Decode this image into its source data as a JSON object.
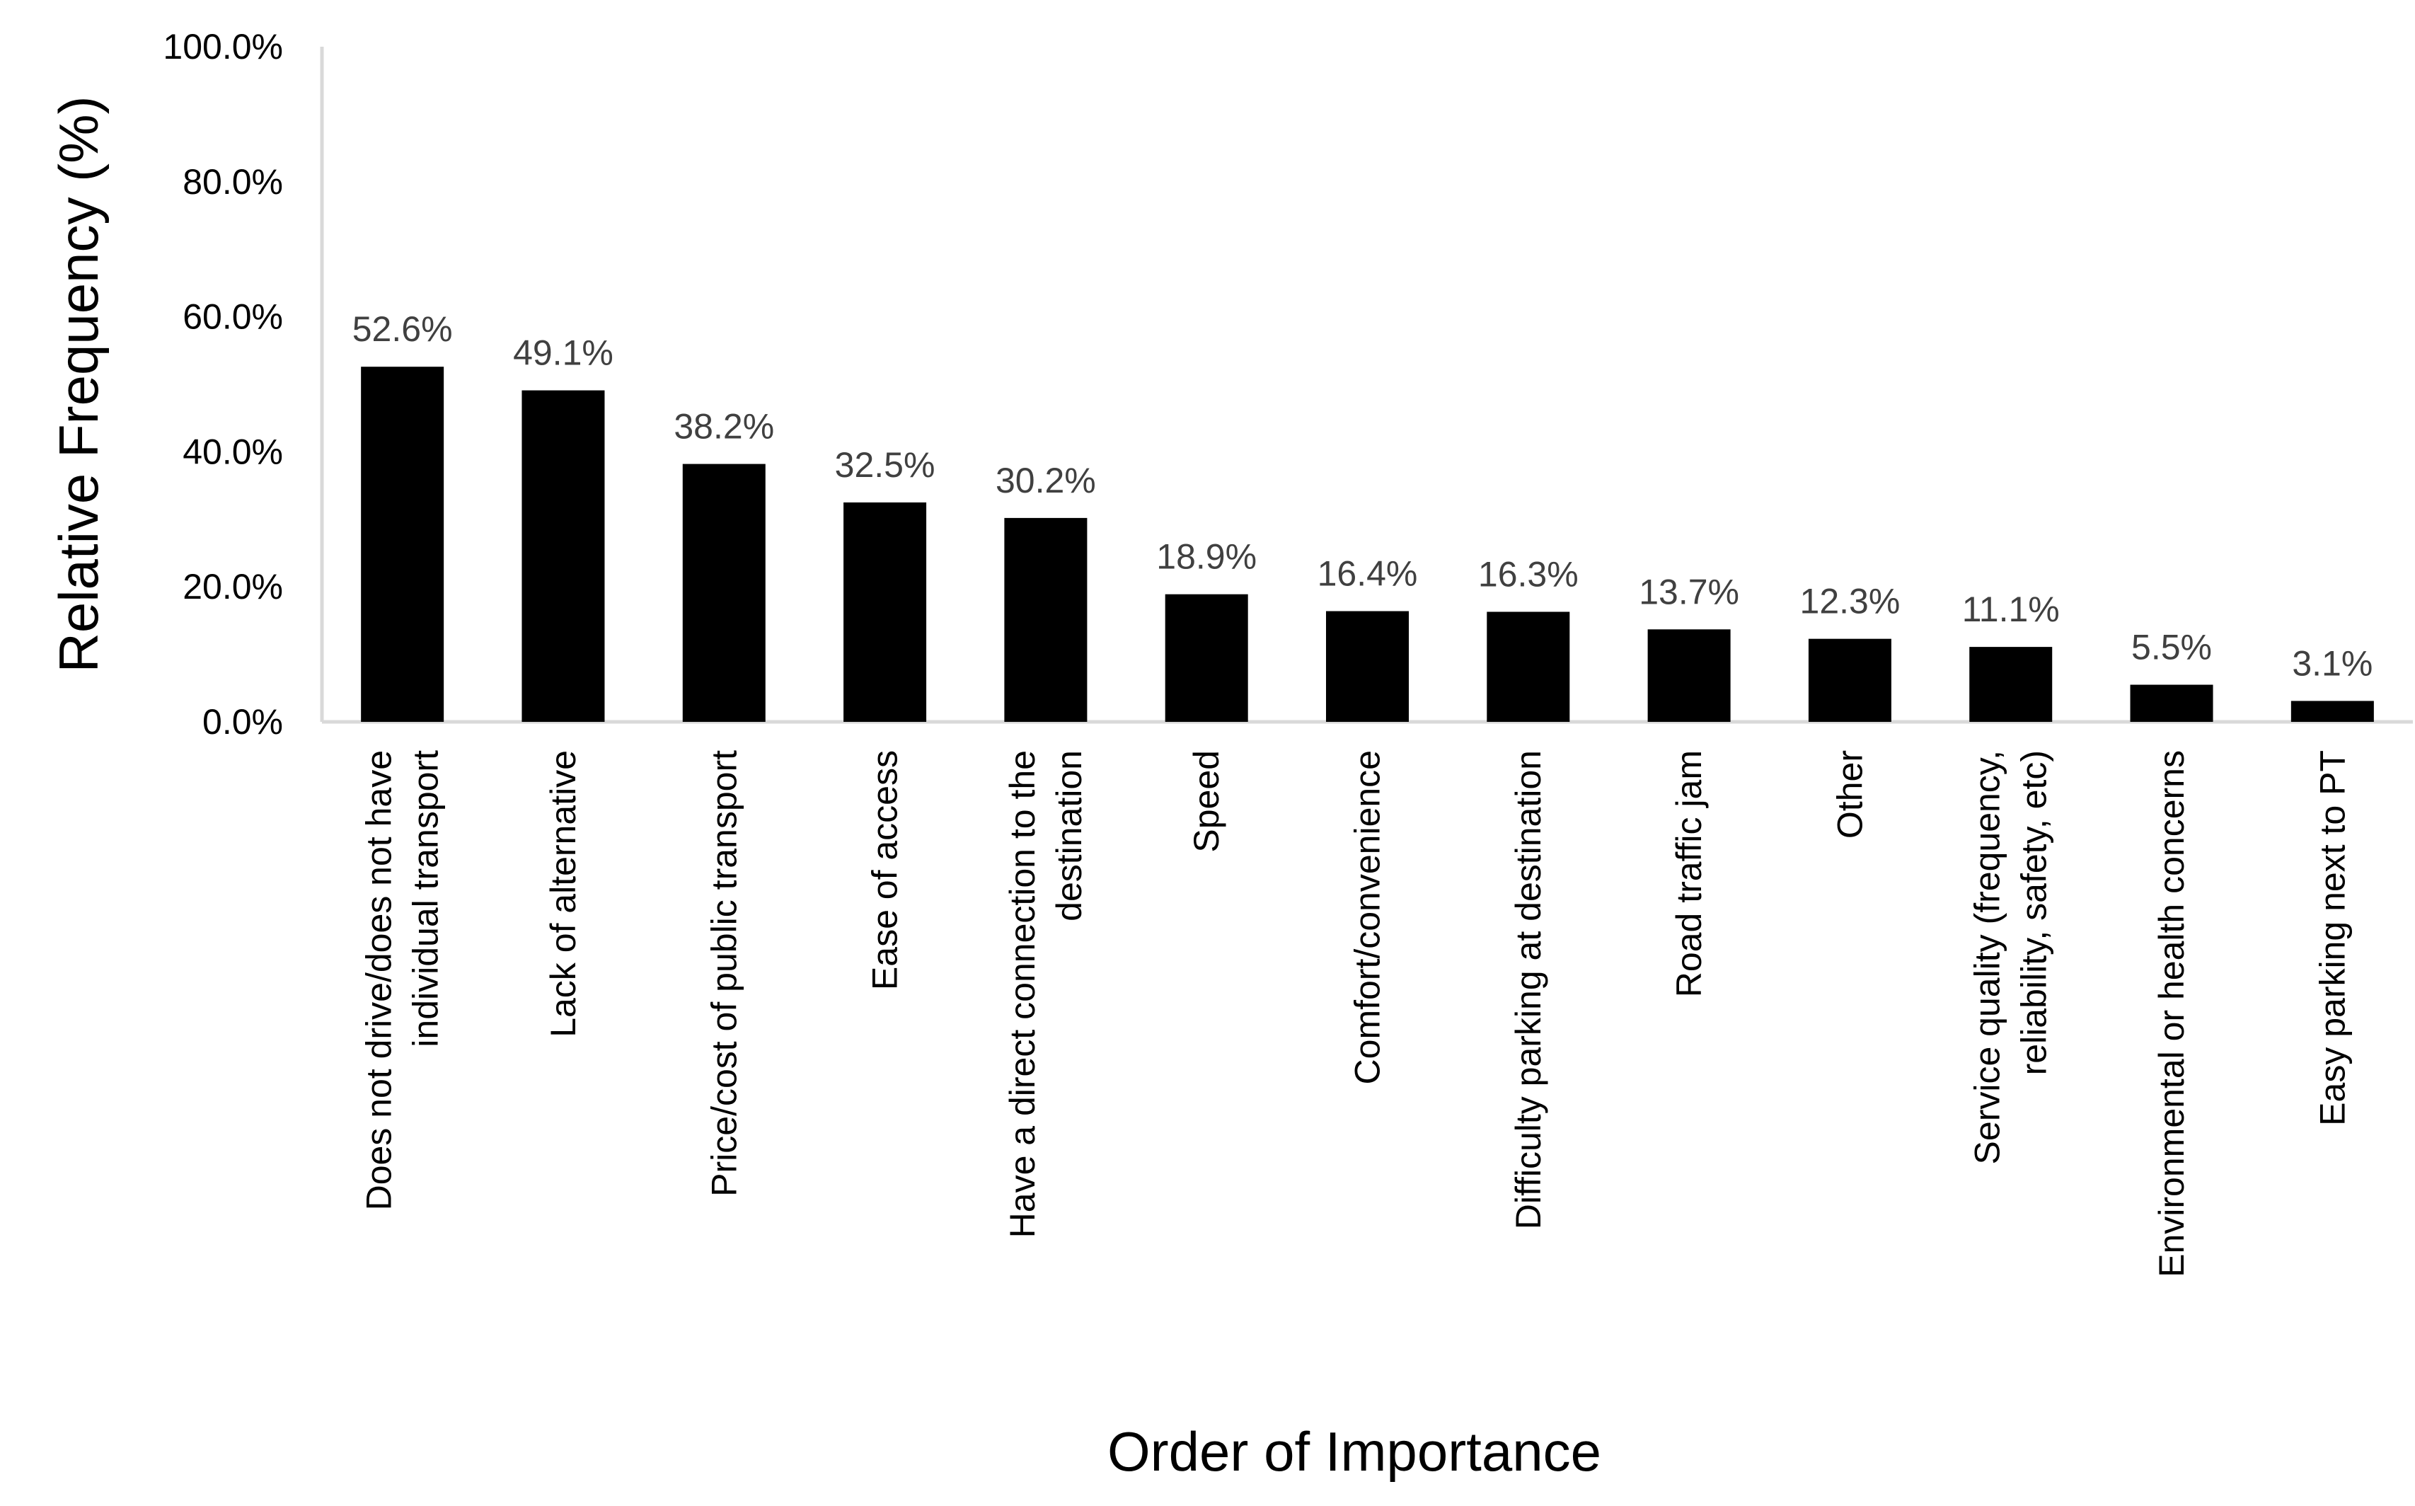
{
  "chart_data": {
    "type": "bar",
    "title": "",
    "xlabel": "Order of Importance",
    "ylabel": "Relative Frequency (%)",
    "ylim": [
      0,
      100
    ],
    "yticks": [
      0,
      20,
      40,
      60,
      80,
      100
    ],
    "ytick_labels": [
      "0.0%",
      "20.0%",
      "40.0%",
      "60.0%",
      "80.0%",
      "100.0%"
    ],
    "grid": false,
    "legend": "none",
    "bar_color": "#000000",
    "categories": [
      "Does not drive/does not have individual transport",
      "Lack of alternative",
      "Price/cost of public transport",
      "Ease of access",
      "Have a direct connection to the destination",
      "Speed",
      "Comfort/convenience",
      "Difficulty parking at destination",
      "Road traffic jam",
      "Other",
      "Service quality (frequency, reliability, safety, etc)",
      "Environmental or health concerns",
      "Easy parking next to PT"
    ],
    "category_lines": [
      [
        "Does not drive/does not have",
        "individual transport"
      ],
      [
        "Lack of alternative"
      ],
      [
        "Price/cost of public transport"
      ],
      [
        "Ease of access"
      ],
      [
        "Have a direct connection to the",
        "destination"
      ],
      [
        "Speed"
      ],
      [
        "Comfort/convenience"
      ],
      [
        "Difficulty parking at destination"
      ],
      [
        "Road traffic jam"
      ],
      [
        "Other"
      ],
      [
        "Service quality (frequency,",
        "reliability, safety, etc)"
      ],
      [
        "Environmental or health concerns"
      ],
      [
        "Easy parking next to PT"
      ]
    ],
    "values": [
      52.6,
      49.1,
      38.2,
      32.5,
      30.2,
      18.9,
      16.4,
      16.3,
      13.7,
      12.3,
      11.1,
      5.5,
      3.1
    ],
    "data_labels": [
      "52.6%",
      "49.1%",
      "38.2%",
      "32.5%",
      "30.2%",
      "18.9%",
      "16.4%",
      "16.3%",
      "13.7%",
      "12.3%",
      "11.1%",
      "5.5%",
      "3.1%"
    ]
  }
}
